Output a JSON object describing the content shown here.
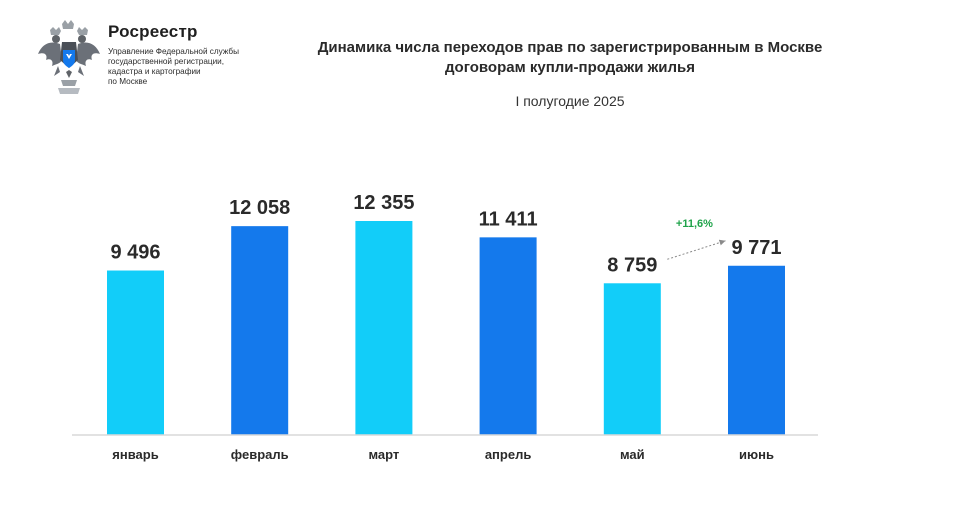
{
  "brand": {
    "name": "Росреестр",
    "subtitle_lines": [
      "Управление Федеральной службы",
      "государственной регистрации,",
      "кадастра и картографии",
      "по Москве"
    ],
    "emblem_icon": "double-headed-eagle-emblem-icon"
  },
  "header": {
    "title_lines": [
      "Динамика числа переходов прав по зарегистрированным в Москве",
      "договорам купли-продажи жилья"
    ],
    "period": "I полугодие 2025"
  },
  "colors": {
    "light_blue": "#12CDF9",
    "dark_blue": "#1479EC",
    "growth_green": "#1FA34A"
  },
  "chart_data": {
    "type": "bar",
    "title": "Динамика числа переходов прав по зарегистрированным в Москве договорам купли-продажи жилья",
    "subtitle": "I полугодие 2025",
    "categories": [
      "январь",
      "февраль",
      "март",
      "апрель",
      "май",
      "июнь"
    ],
    "values": [
      9496,
      12058,
      12355,
      11411,
      8759,
      9771
    ],
    "value_labels": [
      "9 496",
      "12 058",
      "12 355",
      "11 411",
      "8 759",
      "9 771"
    ],
    "bar_colors": [
      "#12CDF9",
      "#1479EC",
      "#12CDF9",
      "#1479EC",
      "#12CDF9",
      "#1479EC"
    ],
    "ylim": [
      0,
      12355
    ],
    "grid": false,
    "annotation": {
      "text": "+11,6%",
      "from": "май",
      "to": "июнь",
      "color": "#1FA34A"
    }
  }
}
